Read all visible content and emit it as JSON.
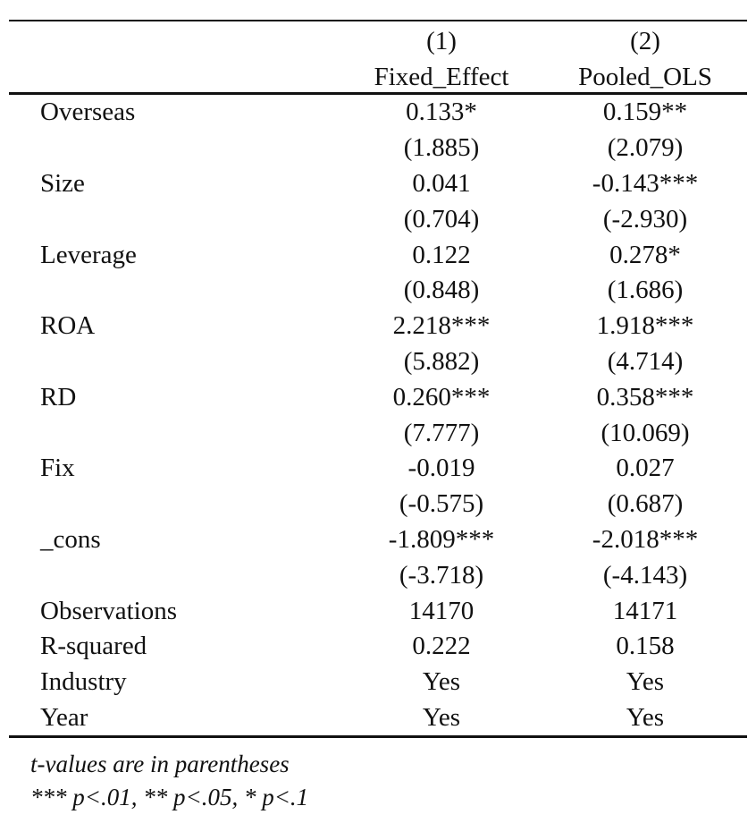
{
  "table": {
    "columns": [
      {
        "number": "(1)",
        "name": "Fixed_Effect"
      },
      {
        "number": "(2)",
        "name": "Pooled_OLS"
      }
    ],
    "rows": [
      {
        "label": "Overseas",
        "c1": "0.133*",
        "c2": "0.159**"
      },
      {
        "label": "",
        "c1": "(1.885)",
        "c2": "(2.079)"
      },
      {
        "label": "Size",
        "c1": "0.041",
        "c2": "-0.143***"
      },
      {
        "label": "",
        "c1": "(0.704)",
        "c2": "(-2.930)"
      },
      {
        "label": "Leverage",
        "c1": "0.122",
        "c2": "0.278*"
      },
      {
        "label": "",
        "c1": "(0.848)",
        "c2": "(1.686)"
      },
      {
        "label": "ROA",
        "c1": "2.218***",
        "c2": "1.918***"
      },
      {
        "label": "",
        "c1": "(5.882)",
        "c2": "(4.714)"
      },
      {
        "label": "RD",
        "c1": "0.260***",
        "c2": "0.358***"
      },
      {
        "label": "",
        "c1": "(7.777)",
        "c2": "(10.069)"
      },
      {
        "label": "Fix",
        "c1": "-0.019",
        "c2": "0.027"
      },
      {
        "label": "",
        "c1": "(-0.575)",
        "c2": "(0.687)"
      },
      {
        "label": "_cons",
        "c1": "-1.809***",
        "c2": "-2.018***"
      },
      {
        "label": "",
        "c1": "(-3.718)",
        "c2": "(-4.143)"
      },
      {
        "label": "Observations",
        "c1": "14170",
        "c2": "14171"
      },
      {
        "label": "R-squared",
        "c1": "0.222",
        "c2": "0.158"
      },
      {
        "label": "Industry",
        "c1": "Yes",
        "c2": "Yes"
      },
      {
        "label": "Year",
        "c1": "Yes",
        "c2": "Yes"
      }
    ]
  },
  "notes": {
    "line1": "t-values are in parentheses",
    "line2": "*** p<.01, ** p<.05, * p<.1"
  }
}
